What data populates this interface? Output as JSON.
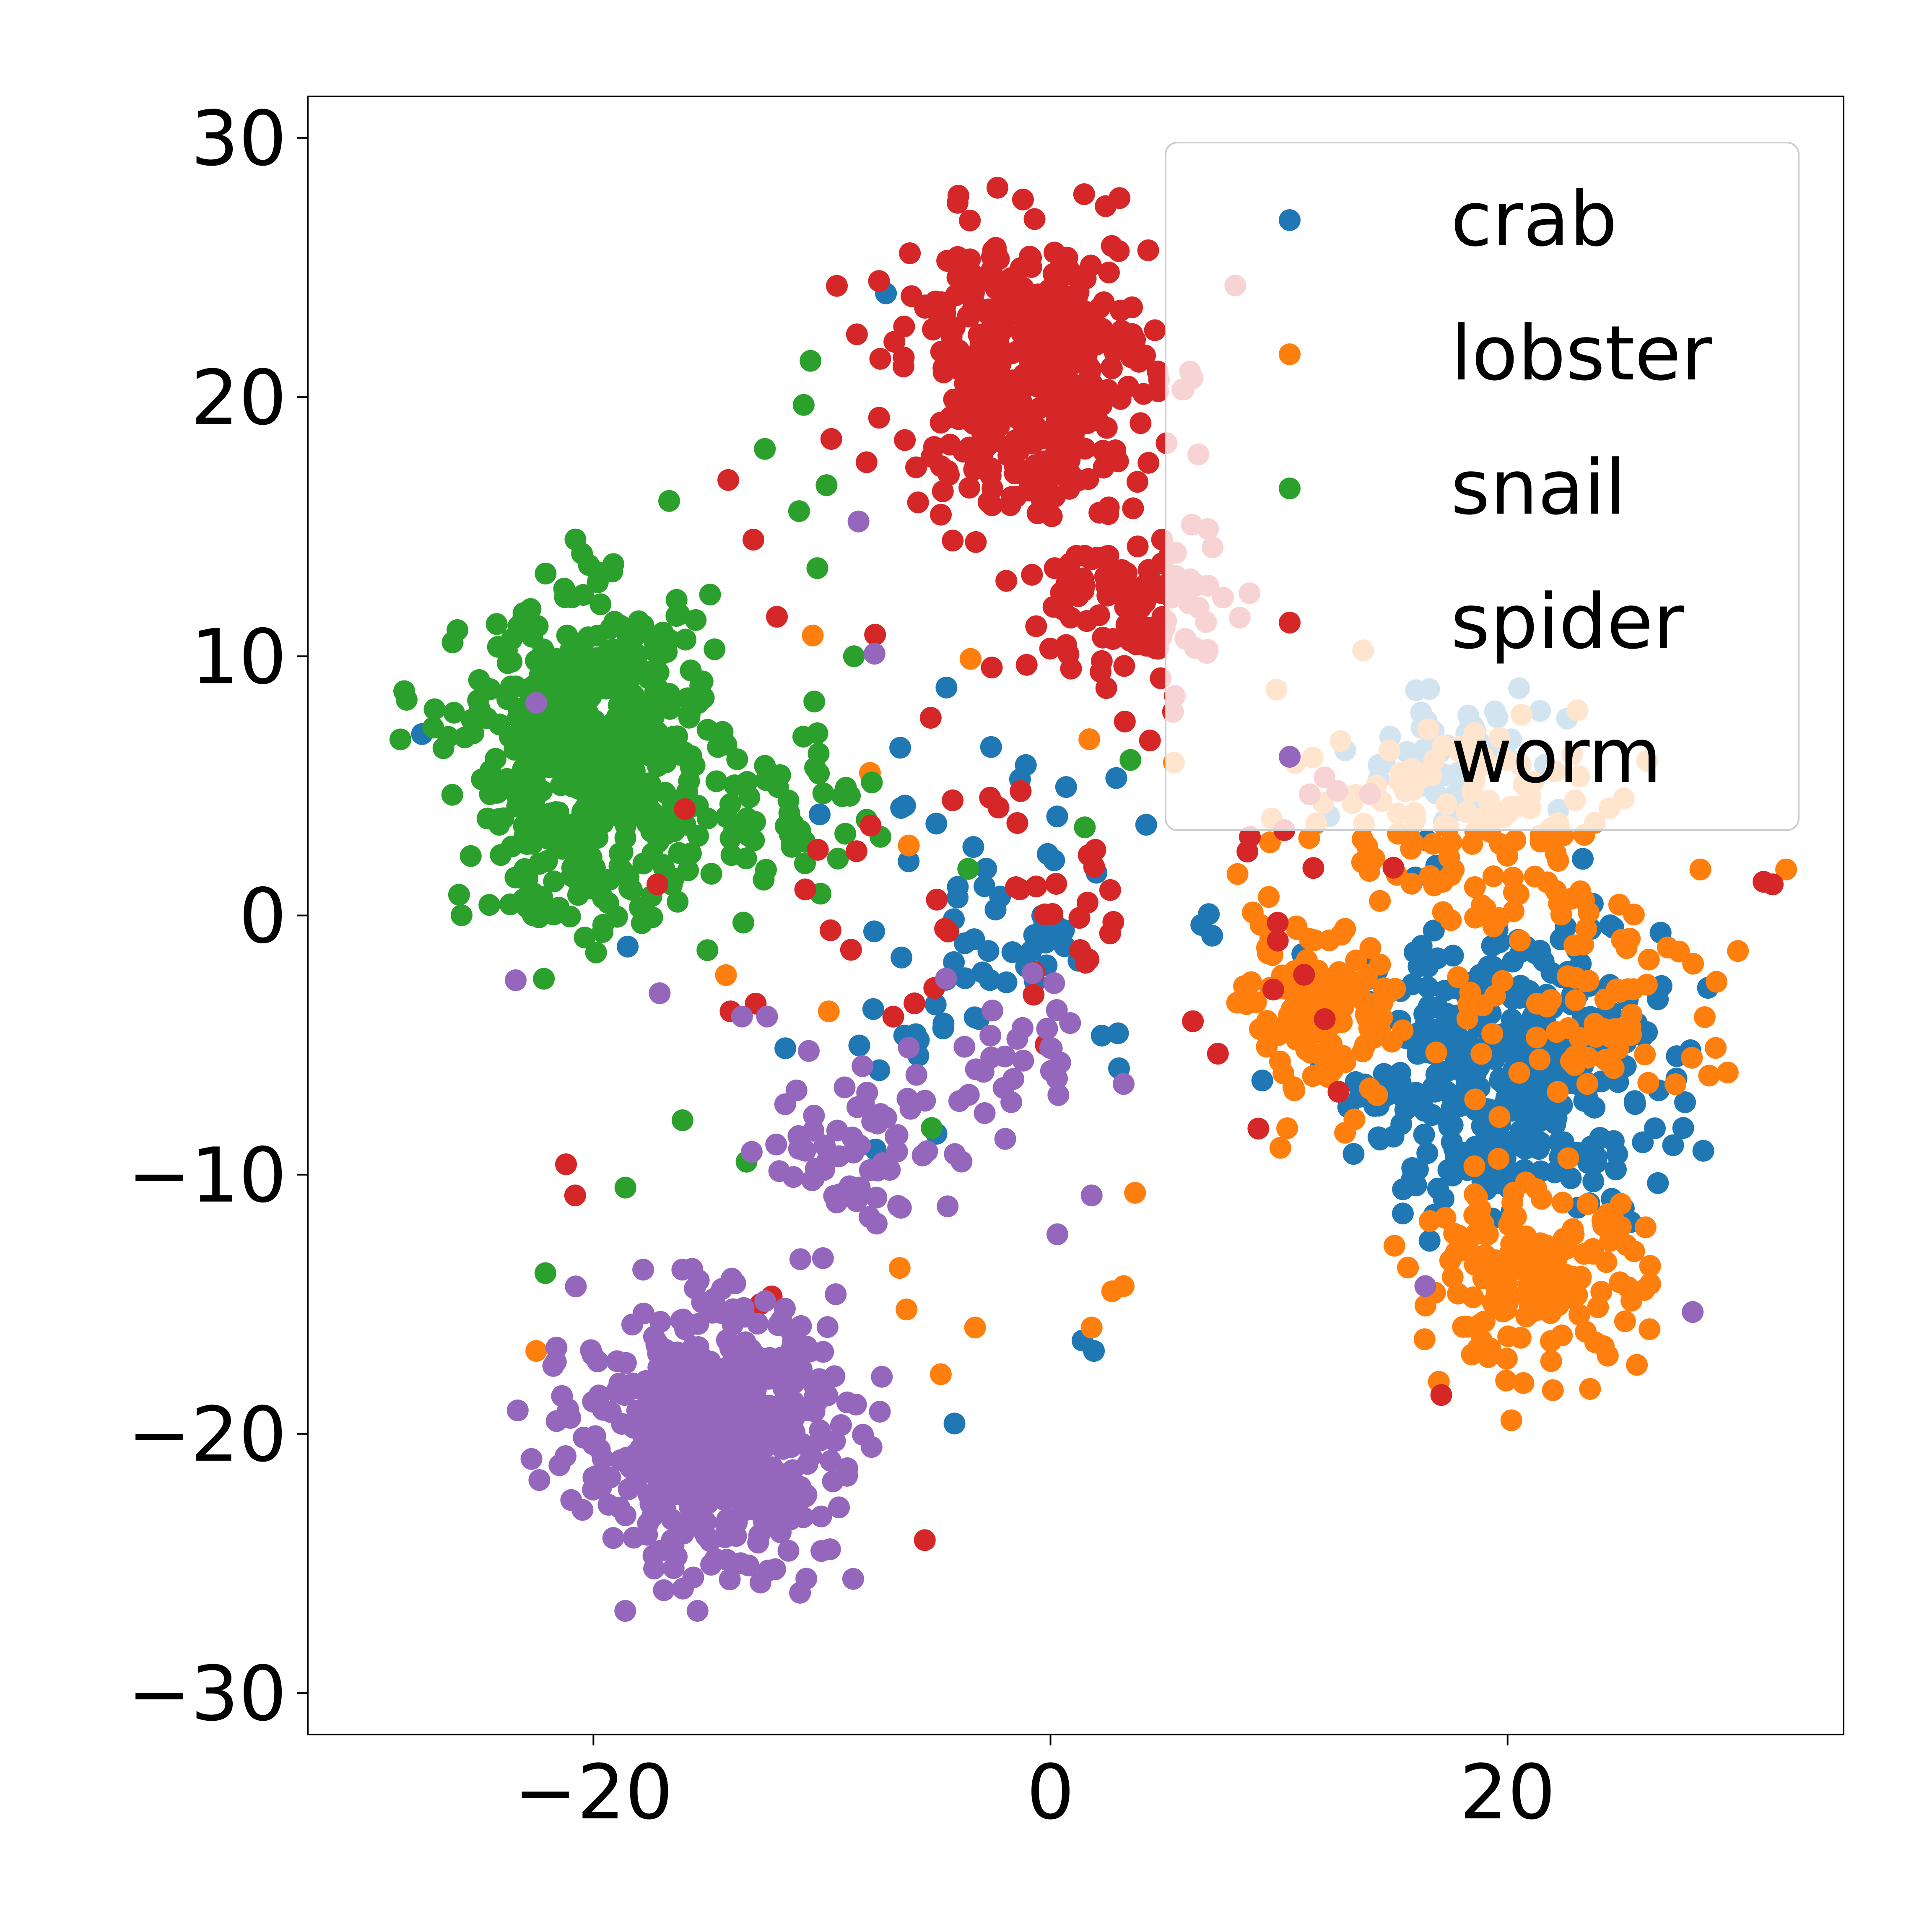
{
  "chart_data": {
    "type": "scatter",
    "title": "",
    "xlabel": "",
    "ylabel": "",
    "xlim": [
      -32.5,
      34.7
    ],
    "ylim": [
      -31.6,
      31.6
    ],
    "xticks": [
      -20,
      0,
      20
    ],
    "yticks": [
      -30,
      -20,
      -10,
      0,
      10,
      20,
      30
    ],
    "xtick_labels": [
      "−20",
      "0",
      "20"
    ],
    "ytick_labels": [
      "−30",
      "−20",
      "−10",
      "0",
      "10",
      "20",
      "30"
    ],
    "grid": false,
    "legend_position": "top-right",
    "series": [
      {
        "name": "crab",
        "color": "#1f77b4",
        "clusters": [
          {
            "center": [
              20,
              -6
            ],
            "spread": [
              6,
              5
            ],
            "count": 380
          },
          {
            "center": [
              17,
              6
            ],
            "spread": [
              3.5,
              3
            ],
            "count": 60
          },
          {
            "center": [
              -3,
              -1
            ],
            "spread": [
              7,
              6
            ],
            "count": 70
          }
        ],
        "points": [
          [
            -7.2,
            24.0
          ],
          [
            -18.5,
            -1.2
          ],
          [
            -27.5,
            7.0
          ],
          [
            -4.2,
            -19.6
          ],
          [
            1.9,
            -16.8
          ],
          [
            1.4,
            -16.4
          ],
          [
            -2.6,
            6.5
          ],
          [
            -10.1,
            3.9
          ]
        ]
      },
      {
        "name": "lobster",
        "color": "#ff7f0e",
        "clusters": [
          {
            "center": [
              12,
              -4
            ],
            "spread": [
              3,
              3
            ],
            "count": 130
          },
          {
            "center": [
              21,
              -14
            ],
            "spread": [
              4.5,
              3
            ],
            "count": 170
          },
          {
            "center": [
              18,
              4
            ],
            "spread": [
              7,
              4
            ],
            "count": 120
          },
          {
            "center": [
              24,
              -3
            ],
            "spread": [
              6,
              5
            ],
            "count": 90
          }
        ],
        "points": [
          [
            -22.5,
            -16.8
          ],
          [
            -6.6,
            -13.6
          ],
          [
            -6.3,
            -15.2
          ],
          [
            -4.8,
            -17.7
          ],
          [
            -3.3,
            -15.9
          ],
          [
            2.7,
            -14.5
          ],
          [
            3.2,
            -14.3
          ],
          [
            1.8,
            -15.9
          ],
          [
            3.7,
            -10.7
          ],
          [
            -10.4,
            10.8
          ],
          [
            -7.9,
            5.5
          ],
          [
            -6.2,
            2.7
          ],
          [
            -3.5,
            9.9
          ],
          [
            1.7,
            6.8
          ],
          [
            5.4,
            5.9
          ],
          [
            -9.7,
            -3.7
          ],
          [
            -14.2,
            -2.3
          ]
        ]
      },
      {
        "name": "snail",
        "color": "#2ca02c",
        "clusters": [
          {
            "center": [
              -20,
              6
            ],
            "spread": [
              5,
              5.5
            ],
            "count": 560
          },
          {
            "center": [
              -11,
              4
            ],
            "spread": [
              3,
              3
            ],
            "count": 40
          }
        ],
        "points": [
          [
            -10.5,
            21.4
          ],
          [
            -10.8,
            19.7
          ],
          [
            -12.5,
            18.0
          ],
          [
            -9.8,
            16.6
          ],
          [
            -10.2,
            13.4
          ],
          [
            -11.0,
            15.6
          ],
          [
            -18.6,
            -10.5
          ],
          [
            -22.1,
            -13.8
          ],
          [
            -16.1,
            -7.9
          ],
          [
            -13.3,
            -9.5
          ],
          [
            -8.6,
            10.0
          ],
          [
            -5.2,
            -8.2
          ],
          [
            1.5,
            3.4
          ],
          [
            3.5,
            6.0
          ],
          [
            -10.3,
            5.7
          ],
          [
            -3.6,
            1.8
          ]
        ]
      },
      {
        "name": "spider",
        "color": "#d62728",
        "clusters": [
          {
            "center": [
              -1,
              21
            ],
            "spread": [
              5,
              5
            ],
            "count": 420
          },
          {
            "center": [
              4,
              12
            ],
            "spread": [
              4,
              3
            ],
            "count": 100
          },
          {
            "center": [
              1,
              1
            ],
            "spread": [
              10,
              6
            ],
            "count": 60
          }
        ],
        "points": [
          [
            -14.1,
            16.8
          ],
          [
            -13.0,
            14.5
          ],
          [
            -16.0,
            4.1
          ],
          [
            -17.2,
            1.2
          ],
          [
            -21.2,
            -9.6
          ],
          [
            -20.8,
            -10.8
          ],
          [
            -12.7,
            -15.0
          ],
          [
            -12.2,
            -14.7
          ],
          [
            -5.5,
            -24.1
          ],
          [
            17.1,
            -18.5
          ],
          [
            31.2,
            1.3
          ],
          [
            31.6,
            1.2
          ],
          [
            12.6,
            -6.8
          ],
          [
            12.0,
            -4.0
          ],
          [
            -12.9,
            -3.4
          ],
          [
            -14.0,
            -3.7
          ]
        ]
      },
      {
        "name": "worm",
        "color": "#9467bd",
        "clusters": [
          {
            "center": [
              -15,
              -20
            ],
            "spread": [
              5,
              4.5
            ],
            "count": 560
          },
          {
            "center": [
              -8,
              -9
            ],
            "spread": [
              4,
              3
            ],
            "count": 60
          },
          {
            "center": [
              -2,
              -5
            ],
            "spread": [
              3,
              3
            ],
            "count": 30
          }
        ],
        "points": [
          [
            -22.5,
            8.2
          ],
          [
            -8.4,
            15.2
          ],
          [
            -7.7,
            10.1
          ],
          [
            -23.4,
            -2.5
          ],
          [
            -17.1,
            -3.0
          ],
          [
            -13.5,
            -3.9
          ],
          [
            -12.4,
            -3.9
          ],
          [
            3.2,
            -6.5
          ],
          [
            1.8,
            -10.8
          ],
          [
            16.4,
            -14.3
          ],
          [
            28.1,
            -15.3
          ],
          [
            0.3,
            -12.3
          ],
          [
            -6.2,
            -5.1
          ]
        ]
      }
    ]
  }
}
